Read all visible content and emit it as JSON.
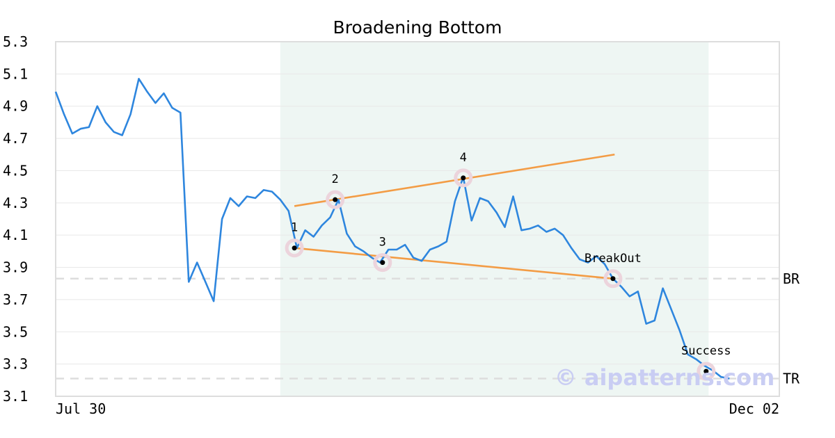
{
  "chart_data": {
    "type": "line",
    "title": "Broadening Bottom",
    "x_tick_labels": [
      "Jul 30",
      "Dec 02"
    ],
    "y_ticks": [
      "3.1",
      "3.3",
      "3.5",
      "3.7",
      "3.9",
      "4.1",
      "4.3",
      "4.5",
      "4.7",
      "4.9",
      "5.1",
      "5.3"
    ],
    "ylim": [
      3.1,
      5.3
    ],
    "xlim": [
      0,
      87
    ],
    "grid": "horizontal",
    "colors": {
      "price": "#2e86de",
      "trendline": "#f39c45",
      "shade": "#eef6f3",
      "marker_halo": "#ecd4dc",
      "level_line": "#dddddd",
      "watermark": "#c9cdf3"
    },
    "series": [
      {
        "x": [
          0,
          1,
          2,
          3,
          4,
          5,
          6,
          7,
          8,
          9,
          10,
          11,
          12,
          13,
          14,
          15,
          16,
          17,
          18,
          19,
          20,
          21,
          22,
          23,
          24,
          25,
          26,
          27,
          28,
          29,
          30,
          31,
          32,
          33,
          34,
          35,
          36,
          37,
          38,
          39,
          40,
          41,
          42,
          43,
          44,
          45,
          46,
          47,
          48,
          49,
          50,
          51,
          52,
          53,
          54,
          55,
          56,
          57,
          58,
          59,
          60,
          61,
          62,
          63,
          64,
          65,
          66,
          67,
          68,
          69,
          70,
          71,
          72,
          73,
          74,
          75,
          76,
          77,
          78,
          79,
          80,
          81,
          82,
          83,
          84,
          85,
          86
        ],
        "values": [
          4.99,
          4.85,
          4.73,
          4.76,
          4.77,
          4.9,
          4.8,
          4.74,
          4.72,
          4.85,
          5.07,
          4.99,
          4.92,
          4.98,
          4.89,
          4.86,
          3.81,
          3.93,
          3.81,
          3.69,
          4.2,
          4.33,
          4.28,
          4.34,
          4.33,
          4.38,
          4.37,
          4.32,
          4.25,
          4.02,
          4.13,
          4.09,
          4.16,
          4.21,
          4.32,
          4.11,
          4.03,
          4.0,
          3.96,
          3.93,
          4.01,
          4.01,
          4.04,
          3.96,
          3.94,
          4.01,
          4.03,
          4.06,
          4.31,
          4.46,
          4.19,
          4.33,
          4.31,
          4.24,
          4.15,
          4.34,
          4.13,
          4.14,
          4.16,
          4.12,
          4.14,
          4.1,
          4.02,
          3.95,
          3.93,
          3.97,
          3.92,
          3.83,
          3.78,
          3.72,
          3.75,
          3.55,
          3.57,
          3.77,
          3.64,
          3.51,
          3.36,
          3.33,
          3.29,
          3.26,
          3.22,
          3.21,
          3.21,
          3.21,
          3.21,
          3.21,
          3.21
        ]
      }
    ],
    "visible_points": 82,
    "pattern_region": {
      "x_start": 27,
      "x_end": 78.5
    },
    "trendlines": [
      {
        "x1": 28.7,
        "y1": 4.28,
        "x2": 67.2,
        "y2": 4.6
      },
      {
        "x1": 28.7,
        "y1": 4.02,
        "x2": 67.0,
        "y2": 3.83
      }
    ],
    "pivots": [
      {
        "label": "1",
        "x": 28.7,
        "y": 4.02
      },
      {
        "label": "2",
        "x": 33.6,
        "y": 4.32
      },
      {
        "label": "3",
        "x": 39.3,
        "y": 3.93
      },
      {
        "label": "4",
        "x": 49.0,
        "y": 4.455
      },
      {
        "label": "BreakOut",
        "x": 67.0,
        "y": 3.83
      },
      {
        "label": "Success",
        "x": 78.2,
        "y": 3.255
      }
    ],
    "levels": [
      {
        "label": "BR",
        "y": 3.83
      },
      {
        "label": "TR",
        "y": 3.21
      }
    ],
    "watermark": "© aipatterns.com"
  }
}
